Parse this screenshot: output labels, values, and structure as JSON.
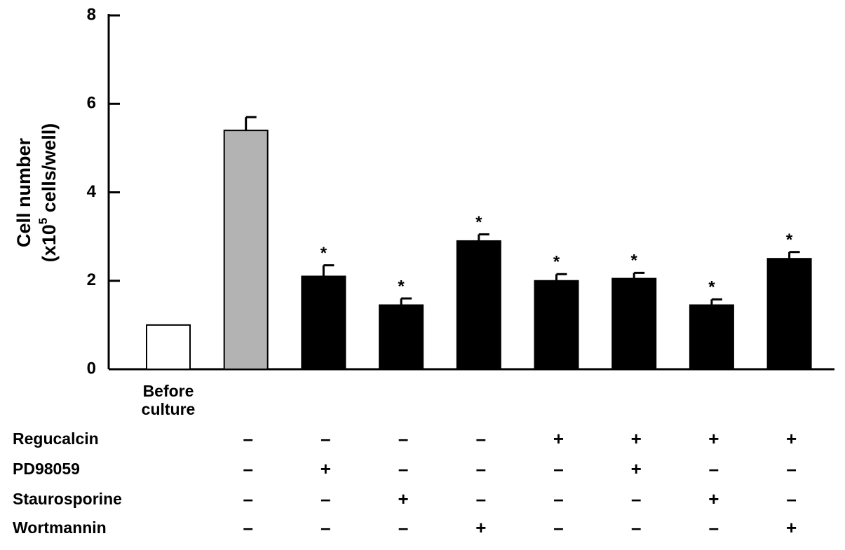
{
  "chart_data": {
    "type": "bar",
    "ylabel": [
      "Cell number",
      "(x10",
      "5",
      " cells/well)"
    ],
    "categories": [
      "Before culture",
      null,
      null,
      null,
      null,
      null,
      null,
      null,
      null
    ],
    "values": [
      1.0,
      5.4,
      2.1,
      1.45,
      2.9,
      2.0,
      2.05,
      1.45,
      2.5
    ],
    "errors": [
      null,
      0.3,
      0.25,
      0.15,
      0.15,
      0.15,
      0.13,
      0.13,
      0.15
    ],
    "colors": [
      "#ffffff",
      "#b3b3b3",
      "#000000",
      "#000000",
      "#000000",
      "#000000",
      "#000000",
      "#000000",
      "#000000"
    ],
    "annotations": [
      null,
      null,
      "*",
      "*",
      "*",
      "*",
      "*",
      "*",
      "*"
    ],
    "ylim": [
      0,
      8
    ],
    "yticks": [
      0,
      2,
      4,
      6,
      8
    ],
    "treatments": [
      {
        "name": "Regucalcin",
        "signs": [
          null,
          "–",
          "–",
          "–",
          "–",
          "+",
          "+",
          "+",
          "+"
        ]
      },
      {
        "name": "PD98059",
        "signs": [
          null,
          "–",
          "+",
          "–",
          "–",
          "–",
          "+",
          "–",
          "–"
        ]
      },
      {
        "name": "Staurosporine",
        "signs": [
          null,
          "–",
          "–",
          "+",
          "–",
          "–",
          "–",
          "+",
          "–"
        ]
      },
      {
        "name": "Wortmannin",
        "signs": [
          null,
          "–",
          "–",
          "–",
          "+",
          "–",
          "–",
          "–",
          "+"
        ]
      }
    ]
  }
}
